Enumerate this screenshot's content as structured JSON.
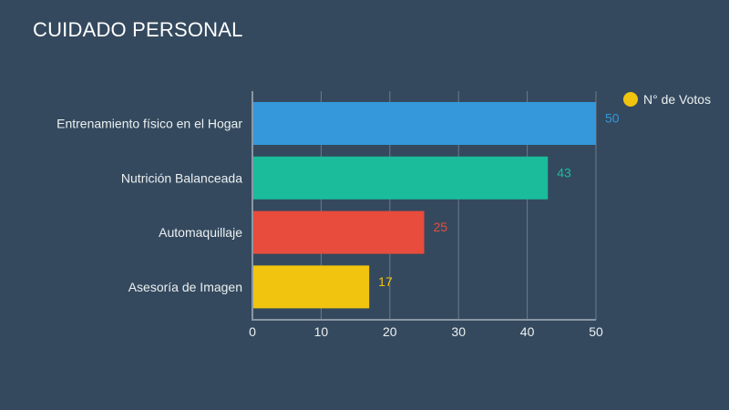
{
  "chart_data": {
    "type": "bar",
    "orientation": "horizontal",
    "title": "CUIDADO PERSONAL",
    "categories": [
      "Entrenamiento físico en el Hogar",
      "Nutrición Balanceada",
      "Automaquillaje",
      "Asesoría de Imagen"
    ],
    "series": [
      {
        "name": "N° de Votos",
        "values": [
          50,
          43,
          25,
          17
        ],
        "colors": [
          "#3498db",
          "#1abc9c",
          "#e74c3c",
          "#f1c40f"
        ]
      }
    ],
    "xlim": [
      0,
      50
    ],
    "xticks": [
      0,
      10,
      20,
      30,
      40,
      50
    ],
    "grid": true,
    "legend": {
      "position": "top-right",
      "marker_color": "#f1c40f"
    },
    "value_labels": true
  }
}
